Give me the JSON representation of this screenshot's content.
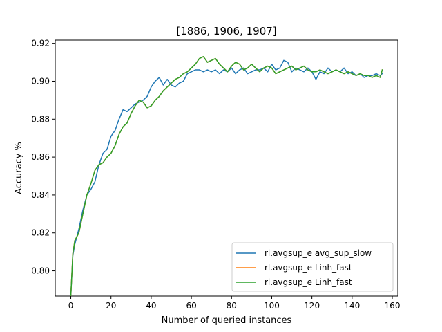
{
  "chart_data": {
    "type": "line",
    "title": "[1886, 1906, 1907]",
    "xlabel": "Number of queried instances",
    "ylabel": "Accuracy %",
    "xlim": [
      -7.75,
      162.75
    ],
    "ylim": [
      0.7867,
      0.9217
    ],
    "xticks": [
      0,
      20,
      40,
      60,
      80,
      100,
      120,
      140,
      160
    ],
    "yticks": [
      0.8,
      0.82,
      0.84,
      0.86,
      0.88,
      0.9,
      0.92
    ],
    "xtick_labels": [
      "0",
      "20",
      "40",
      "60",
      "80",
      "100",
      "120",
      "140",
      "160"
    ],
    "ytick_labels": [
      "0.80",
      "0.82",
      "0.84",
      "0.86",
      "0.88",
      "0.90",
      "0.92"
    ],
    "grid": false,
    "legend_position": "lower-right",
    "series": [
      {
        "name": "rl.avgsup_e avg_sup_slow",
        "color": "#1f77b4",
        "x": [
          0,
          1,
          2,
          4,
          6,
          8,
          10,
          12,
          14,
          16,
          18,
          20,
          22,
          24,
          26,
          28,
          30,
          32,
          34,
          36,
          38,
          40,
          42,
          44,
          46,
          48,
          50,
          52,
          54,
          56,
          58,
          60,
          62,
          64,
          66,
          68,
          70,
          72,
          74,
          76,
          78,
          80,
          82,
          84,
          86,
          88,
          90,
          92,
          94,
          96,
          98,
          100,
          102,
          104,
          106,
          108,
          110,
          112,
          114,
          116,
          118,
          120,
          122,
          124,
          126,
          128,
          130,
          132,
          134,
          136,
          138,
          140,
          142,
          144,
          146,
          148,
          150,
          152,
          154,
          155
        ],
        "y": [
          0.787,
          0.808,
          0.814,
          0.822,
          0.832,
          0.84,
          0.843,
          0.847,
          0.856,
          0.862,
          0.864,
          0.871,
          0.874,
          0.88,
          0.885,
          0.884,
          0.886,
          0.888,
          0.889,
          0.89,
          0.892,
          0.897,
          0.9,
          0.902,
          0.898,
          0.901,
          0.898,
          0.897,
          0.899,
          0.9,
          0.904,
          0.905,
          0.906,
          0.906,
          0.905,
          0.906,
          0.905,
          0.906,
          0.904,
          0.906,
          0.905,
          0.907,
          0.904,
          0.906,
          0.907,
          0.904,
          0.905,
          0.906,
          0.906,
          0.907,
          0.905,
          0.909,
          0.906,
          0.907,
          0.911,
          0.91,
          0.905,
          0.907,
          0.906,
          0.905,
          0.907,
          0.905,
          0.901,
          0.905,
          0.904,
          0.907,
          0.905,
          0.906,
          0.905,
          0.907,
          0.904,
          0.905,
          0.903,
          0.904,
          0.902,
          0.903,
          0.903,
          0.904,
          0.903,
          0.904
        ]
      },
      {
        "name": "rl.avgsup_e Linh_fast",
        "color": "#ff7f0e",
        "x": [
          0,
          1,
          2,
          4,
          6,
          8,
          10,
          12,
          14,
          16,
          18,
          20,
          22,
          24,
          26,
          28,
          30,
          32,
          34,
          36,
          38,
          40,
          42,
          44,
          46,
          48,
          50,
          52,
          54,
          56,
          58,
          60,
          62,
          64,
          66,
          68,
          70,
          72,
          74,
          76,
          78,
          80,
          82,
          84,
          86,
          88,
          90,
          92,
          94,
          96,
          98,
          100,
          102,
          104,
          106,
          108,
          110,
          112,
          114,
          116,
          118,
          120,
          122,
          124,
          126,
          128,
          130,
          132,
          134,
          136,
          138,
          140,
          142,
          144,
          146,
          148,
          150,
          152,
          154,
          155
        ],
        "y": [
          0.787,
          0.809,
          0.816,
          0.82,
          0.83,
          0.84,
          0.846,
          0.853,
          0.856,
          0.857,
          0.86,
          0.862,
          0.866,
          0.872,
          0.876,
          0.878,
          0.883,
          0.887,
          0.89,
          0.889,
          0.886,
          0.887,
          0.89,
          0.892,
          0.895,
          0.897,
          0.899,
          0.901,
          0.902,
          0.904,
          0.905,
          0.907,
          0.909,
          0.912,
          0.913,
          0.91,
          0.911,
          0.912,
          0.909,
          0.907,
          0.905,
          0.908,
          0.91,
          0.909,
          0.906,
          0.907,
          0.909,
          0.907,
          0.905,
          0.907,
          0.908,
          0.907,
          0.904,
          0.905,
          0.906,
          0.907,
          0.908,
          0.906,
          0.907,
          0.908,
          0.906,
          0.905,
          0.905,
          0.906,
          0.905,
          0.904,
          0.905,
          0.906,
          0.905,
          0.904,
          0.905,
          0.904,
          0.903,
          0.904,
          0.903,
          0.903,
          0.902,
          0.903,
          0.902,
          0.906
        ]
      },
      {
        "name": "rl.avgsup_e Linh_fast",
        "color": "#2ca02c",
        "x": [
          0,
          1,
          2,
          4,
          6,
          8,
          10,
          12,
          14,
          16,
          18,
          20,
          22,
          24,
          26,
          28,
          30,
          32,
          34,
          36,
          38,
          40,
          42,
          44,
          46,
          48,
          50,
          52,
          54,
          56,
          58,
          60,
          62,
          64,
          66,
          68,
          70,
          72,
          74,
          76,
          78,
          80,
          82,
          84,
          86,
          88,
          90,
          92,
          94,
          96,
          98,
          100,
          102,
          104,
          106,
          108,
          110,
          112,
          114,
          116,
          118,
          120,
          122,
          124,
          126,
          128,
          130,
          132,
          134,
          136,
          138,
          140,
          142,
          144,
          146,
          148,
          150,
          152,
          154,
          155
        ],
        "y": [
          0.787,
          0.809,
          0.816,
          0.82,
          0.83,
          0.84,
          0.846,
          0.853,
          0.856,
          0.857,
          0.86,
          0.862,
          0.866,
          0.872,
          0.876,
          0.878,
          0.883,
          0.887,
          0.89,
          0.889,
          0.886,
          0.887,
          0.89,
          0.892,
          0.895,
          0.897,
          0.899,
          0.901,
          0.902,
          0.904,
          0.905,
          0.907,
          0.909,
          0.912,
          0.913,
          0.91,
          0.911,
          0.912,
          0.909,
          0.907,
          0.905,
          0.908,
          0.91,
          0.909,
          0.906,
          0.907,
          0.909,
          0.907,
          0.905,
          0.907,
          0.908,
          0.907,
          0.904,
          0.905,
          0.906,
          0.907,
          0.908,
          0.906,
          0.907,
          0.908,
          0.906,
          0.905,
          0.905,
          0.906,
          0.905,
          0.904,
          0.905,
          0.906,
          0.905,
          0.904,
          0.905,
          0.904,
          0.903,
          0.904,
          0.903,
          0.903,
          0.902,
          0.903,
          0.902,
          0.906
        ]
      }
    ]
  }
}
